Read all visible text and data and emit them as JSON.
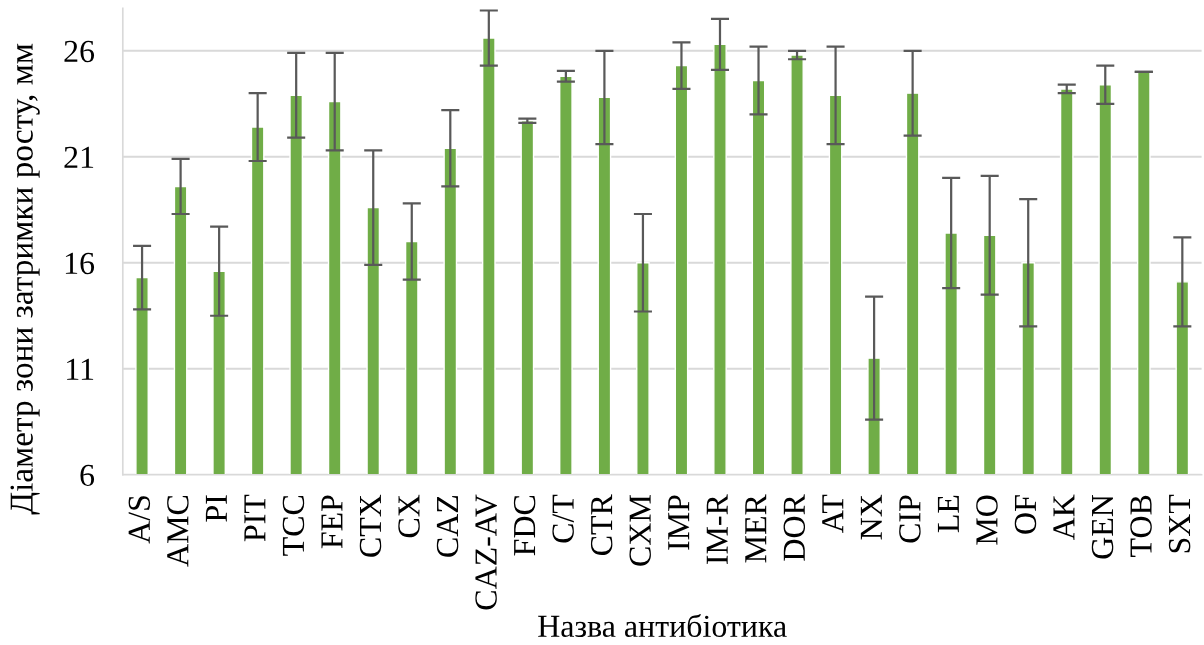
{
  "chart_data": {
    "type": "bar",
    "xlabel": "Назва антибіотика",
    "ylabel": "Діаметр зони затримки росту, мм",
    "categories": [
      "A/S",
      "AMC",
      "PI",
      "PIT",
      "TCC",
      "FEP",
      "CTX",
      "CX",
      "CAZ",
      "CAZ-AV",
      "FDC",
      "C/T",
      "CTR",
      "CXM",
      "IMP",
      "IM-R",
      "MER",
      "DOR",
      "AT",
      "NX",
      "CIP",
      "LE",
      "MO",
      "OF",
      "AK",
      "GEN",
      "TOB",
      "SXT"
    ],
    "values": [
      15.3,
      19.6,
      15.6,
      22.4,
      23.9,
      23.6,
      18.6,
      17.0,
      21.4,
      26.6,
      22.7,
      24.8,
      23.8,
      16.0,
      25.3,
      26.3,
      24.6,
      25.8,
      23.9,
      11.5,
      24.0,
      17.4,
      17.3,
      16.0,
      24.2,
      24.4,
      25.0,
      15.1
    ],
    "errors": [
      1.5,
      1.3,
      2.1,
      1.6,
      2.0,
      2.3,
      2.7,
      1.8,
      1.8,
      1.3,
      0.1,
      0.25,
      2.2,
      2.3,
      1.1,
      1.2,
      1.6,
      0.2,
      2.3,
      2.9,
      2.0,
      2.6,
      2.8,
      3.0,
      0.2,
      0.9,
      0,
      2.1
    ],
    "color": "#70ad47",
    "ylim": [
      6,
      28
    ],
    "yticks": [
      6,
      11,
      16,
      21,
      26
    ],
    "grid": "y"
  }
}
